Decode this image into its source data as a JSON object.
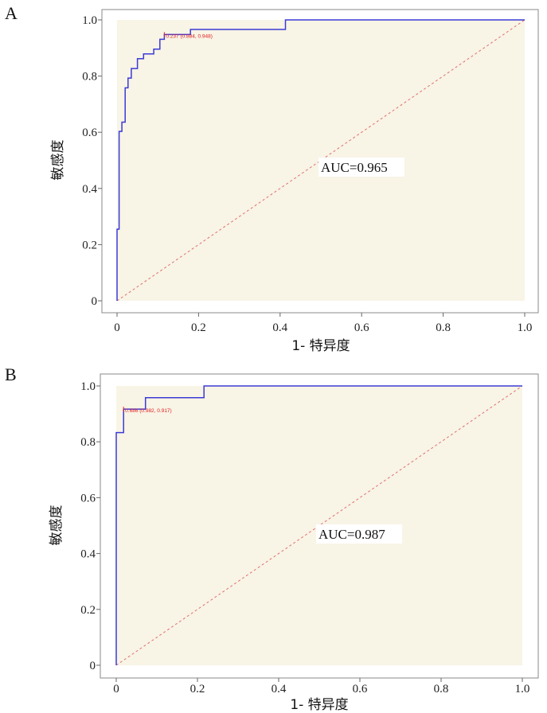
{
  "chart_data": [
    {
      "panel": "A",
      "type": "line",
      "xlabel": "1- 特异度",
      "ylabel": "敏感度",
      "xlim": [
        0,
        1
      ],
      "ylim": [
        0,
        1
      ],
      "x_ticks": [
        "0",
        "0.2",
        "0.4",
        "0.6",
        "0.8",
        "1.0"
      ],
      "y_ticks": [
        "0",
        "0.2",
        "0.4",
        "0.6",
        "0.8",
        "1.0"
      ],
      "annotation": "AUC=0.965",
      "cutoff_label": "0.237 (0.884, 0.948)",
      "cutoff_point": [
        0.116,
        0.948
      ],
      "colors": {
        "roc": "#3b3bd6",
        "diagonal": "#e07070",
        "plot_bg": "#f8f4e6",
        "cutoff": "#e02020"
      },
      "roc_points": [
        [
          0,
          0
        ],
        [
          0,
          0.255
        ],
        [
          0.005,
          0.255
        ],
        [
          0.005,
          0.603
        ],
        [
          0.012,
          0.603
        ],
        [
          0.012,
          0.636
        ],
        [
          0.02,
          0.636
        ],
        [
          0.02,
          0.758
        ],
        [
          0.027,
          0.758
        ],
        [
          0.027,
          0.793
        ],
        [
          0.035,
          0.793
        ],
        [
          0.035,
          0.827
        ],
        [
          0.05,
          0.827
        ],
        [
          0.05,
          0.862
        ],
        [
          0.065,
          0.862
        ],
        [
          0.065,
          0.879
        ],
        [
          0.09,
          0.879
        ],
        [
          0.09,
          0.896
        ],
        [
          0.105,
          0.896
        ],
        [
          0.105,
          0.931
        ],
        [
          0.116,
          0.931
        ],
        [
          0.116,
          0.948
        ],
        [
          0.18,
          0.948
        ],
        [
          0.18,
          0.966
        ],
        [
          0.413,
          0.966
        ],
        [
          0.413,
          1.0
        ],
        [
          1.0,
          1.0
        ]
      ]
    },
    {
      "panel": "B",
      "type": "line",
      "xlabel": "1- 特异度",
      "ylabel": "敏感度",
      "xlim": [
        0,
        1
      ],
      "ylim": [
        0,
        1
      ],
      "x_ticks": [
        "0",
        "0.2",
        "0.4",
        "0.6",
        "0.8",
        "1.0"
      ],
      "y_ticks": [
        "0",
        "0.2",
        "0.4",
        "0.6",
        "0.8",
        "1.0"
      ],
      "annotation": "AUC=0.987",
      "cutoff_label": "0.686 (0.982, 0.917)",
      "cutoff_point": [
        0.018,
        0.917
      ],
      "colors": {
        "roc": "#3b3bd6",
        "diagonal": "#e07070",
        "plot_bg": "#f8f4e6",
        "cutoff": "#e02020"
      },
      "roc_points": [
        [
          0,
          0
        ],
        [
          0,
          0.833
        ],
        [
          0.018,
          0.833
        ],
        [
          0.018,
          0.917
        ],
        [
          0.072,
          0.917
        ],
        [
          0.072,
          0.958
        ],
        [
          0.216,
          0.958
        ],
        [
          0.216,
          1.0
        ],
        [
          1.0,
          1.0
        ]
      ]
    }
  ]
}
